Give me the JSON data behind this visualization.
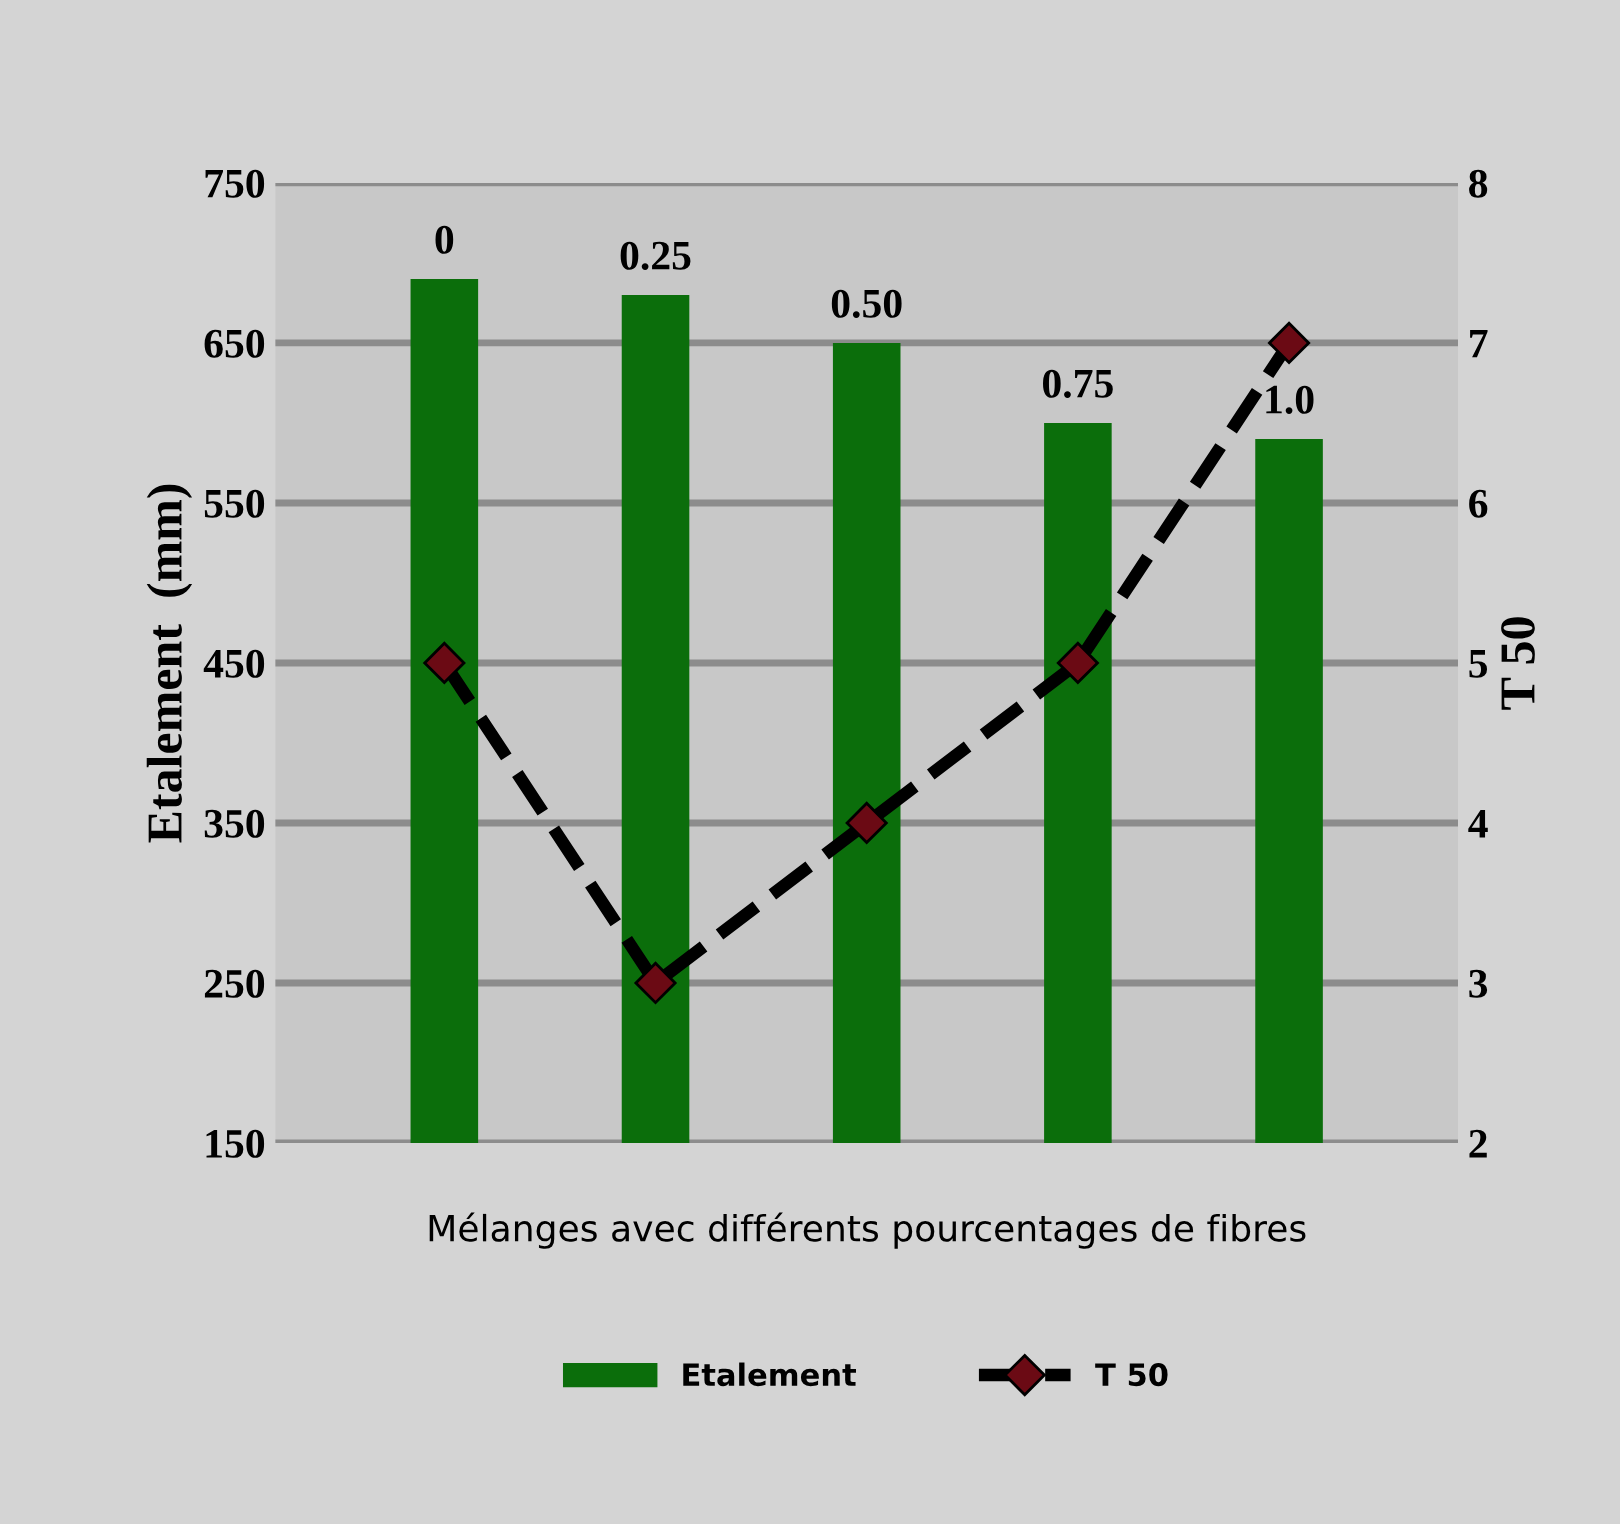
{
  "chart_data": {
    "type": "bar",
    "categories": [
      "0",
      "0.25",
      "0.50",
      "0.75",
      "1.0"
    ],
    "xlabel": "Mélanges avec différents pourcentages de fibres",
    "ylabel": "Etalement  (mm)",
    "y2label": "T 50",
    "series": [
      {
        "name": "Etalement",
        "color": "#0b6e0b",
        "values": [
          690,
          680,
          650,
          600,
          590
        ]
      },
      {
        "name": "T 50",
        "type": "line",
        "axis": "y2",
        "color": "#000000",
        "marker": "diamond",
        "line_style": "dashed",
        "values": [
          5,
          3,
          4,
          5,
          7
        ]
      }
    ],
    "ylim": [
      150,
      750
    ],
    "yticks": [
      150,
      250,
      350,
      450,
      550,
      650,
      750
    ],
    "y2lim": [
      2,
      8
    ],
    "y2ticks": [
      2,
      3,
      4,
      5,
      6,
      7,
      8
    ],
    "grid": "y",
    "legend": "bottom"
  }
}
